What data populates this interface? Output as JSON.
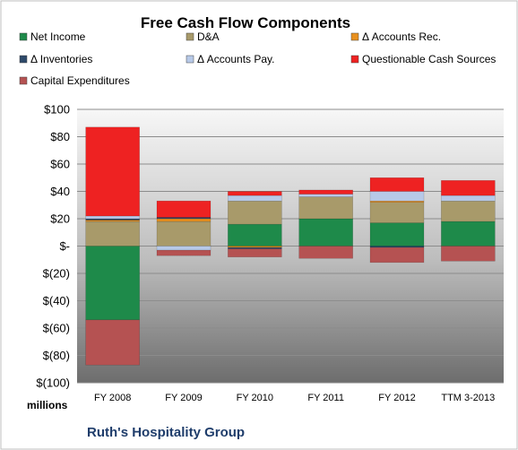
{
  "chart_data": {
    "type": "bar",
    "stacked": true,
    "title": "Free Cash Flow Components",
    "company": "Ruth's Hospitality Group",
    "units_label": "millions",
    "categories": [
      "FY 2008",
      "FY 2009",
      "FY 2010",
      "FY 2011",
      "FY 2012",
      "TTM 3-2013"
    ],
    "ylim": [
      -100,
      100
    ],
    "yticks": [
      100,
      80,
      60,
      40,
      20,
      0,
      -20,
      -40,
      -60,
      -80,
      -100
    ],
    "ytick_labels": [
      "$100",
      "$80",
      "$60",
      "$40",
      "$20",
      "$-",
      "$(20)",
      "$(40)",
      "$(60)",
      "$(80)",
      "$(100)"
    ],
    "grid": true,
    "legend_position": "top",
    "series": [
      {
        "name": "Net Income",
        "color": "#1e8a4a",
        "values": [
          -54,
          0,
          16,
          20,
          17,
          18
        ]
      },
      {
        "name": "D&A",
        "color": "#a89a6a",
        "values": [
          18,
          18,
          17,
          16,
          15,
          15
        ]
      },
      {
        "name": "Δ Accounts Rec.",
        "color": "#e8901e",
        "values": [
          1,
          2,
          -1,
          0,
          1,
          0
        ]
      },
      {
        "name": "Δ Inventories",
        "color": "#2e4a6a",
        "values": [
          1,
          1,
          -1,
          0,
          -1,
          0
        ]
      },
      {
        "name": "Δ Accounts Pay.",
        "color": "#b7c9e8",
        "values": [
          2,
          -3,
          4,
          2,
          7,
          4
        ]
      },
      {
        "name": "Questionable Cash Sources",
        "color": "#ee2222",
        "values": [
          65,
          12,
          3,
          3,
          10,
          11
        ]
      },
      {
        "name": "Capital Expenditures",
        "color": "#b55252",
        "values": [
          -33,
          -4,
          -6,
          -9,
          -11,
          -11
        ]
      }
    ]
  }
}
